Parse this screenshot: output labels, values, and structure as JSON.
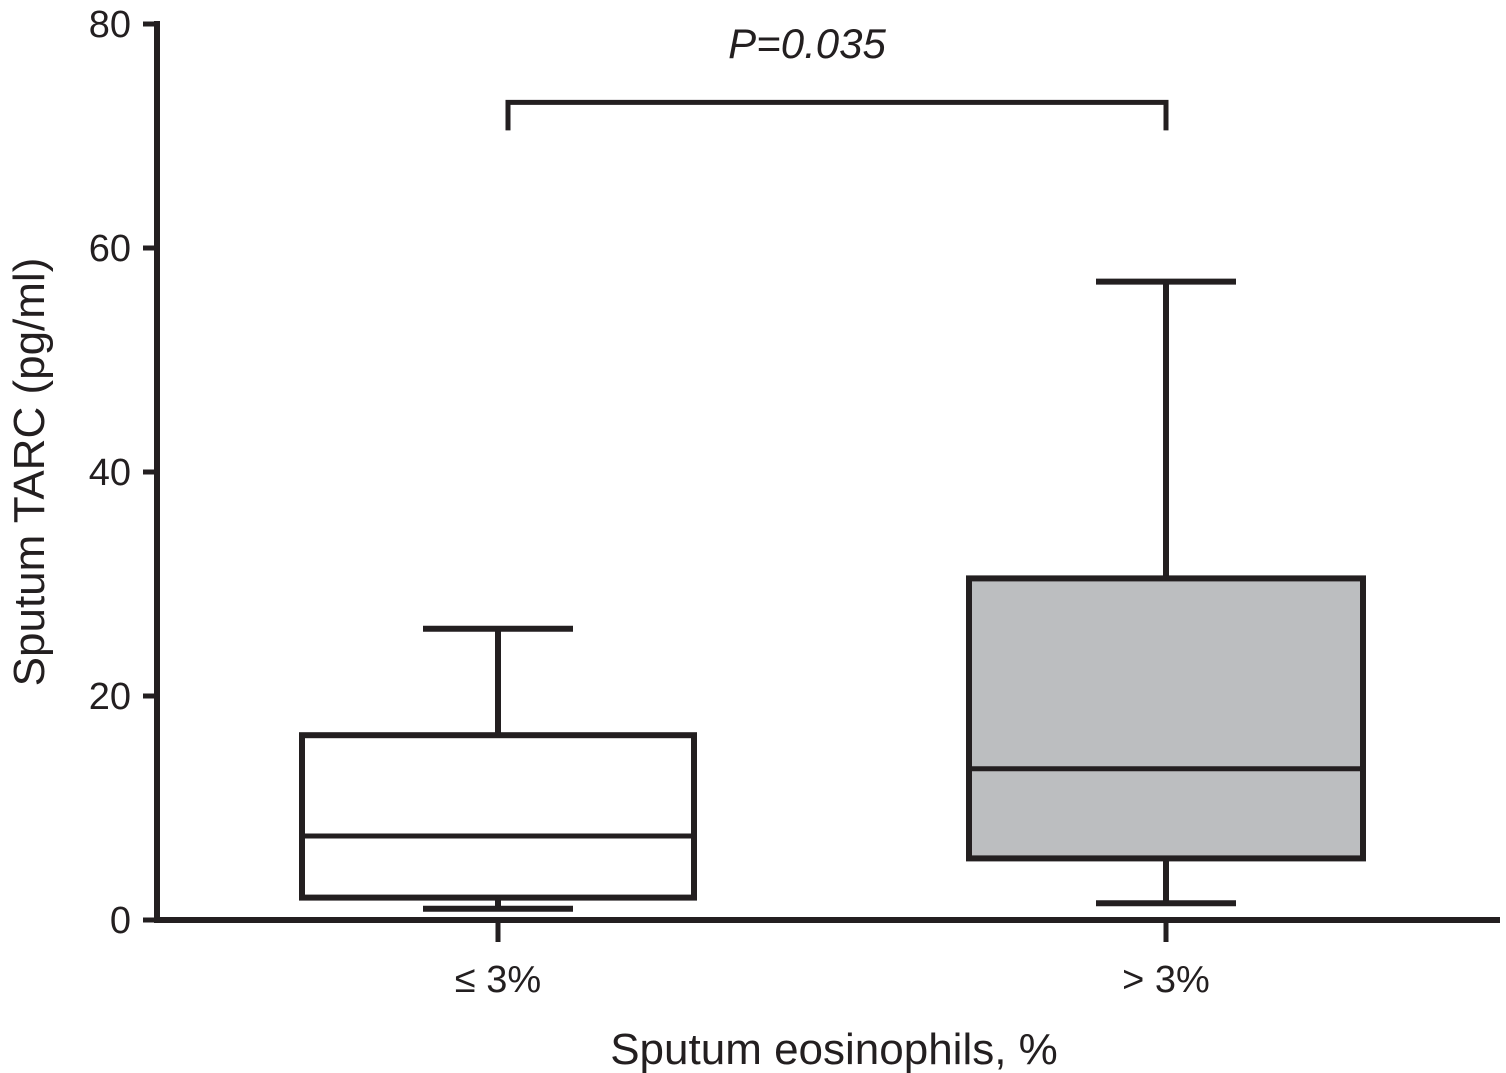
{
  "chart_data": {
    "type": "box",
    "ylabel": "Sputum TARC (pg/ml)",
    "xlabel": "Sputum eosinophils, %",
    "ylim": [
      0,
      80
    ],
    "yticks": [
      0,
      20,
      40,
      60,
      80
    ],
    "categories": [
      "≤ 3%",
      "> 3%"
    ],
    "boxes": [
      {
        "category": "≤ 3%",
        "min": 1,
        "q1": 2,
        "median": 7.5,
        "q3": 16.5,
        "max": 26,
        "fill": "#ffffff"
      },
      {
        "category": "> 3%",
        "min": 1.5,
        "q1": 5.5,
        "median": 13.5,
        "q3": 30.5,
        "max": 57,
        "fill": "#bcbec0"
      }
    ],
    "significance": {
      "label": "P=0.035",
      "y": 73,
      "between": [
        "≤ 3%",
        "> 3%"
      ]
    },
    "colors": {
      "axis": "#231f20",
      "box_low": "#ffffff",
      "box_high": "#bcbec0"
    }
  }
}
